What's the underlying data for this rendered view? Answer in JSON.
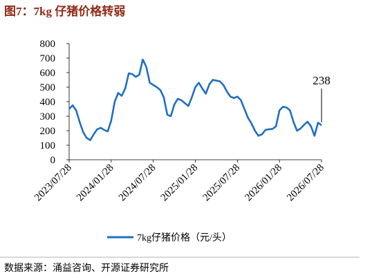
{
  "chart_data": {
    "type": "line",
    "title": "图7：7kg 仔猪价格转弱",
    "source": "数据来源：涌益咨询、开源证券研究所",
    "categories": [
      "2023/07/28",
      null,
      null,
      null,
      null,
      null,
      null,
      null,
      null,
      null,
      null,
      null,
      "2024/01/28",
      null,
      null,
      null,
      null,
      null,
      null,
      null,
      null,
      null,
      null,
      null,
      "2024/07/28",
      null,
      null,
      null,
      null,
      null,
      null,
      null,
      null,
      null,
      null,
      null,
      "2025/01/28",
      null,
      null,
      null,
      null,
      null,
      null,
      null,
      null,
      null,
      null,
      null,
      "2025/07/28",
      null,
      null,
      null,
      null,
      null,
      null,
      null,
      null,
      null,
      null,
      null,
      "2026/01/28",
      null,
      null,
      null,
      null,
      null,
      null,
      null,
      null,
      null,
      null,
      null,
      "2026/07/28"
    ],
    "series": [
      {
        "name": "7kg仔猪价格（元/头）",
        "color": "#1f6fc0",
        "values": [
          350,
          375,
          340,
          260,
          190,
          150,
          135,
          175,
          210,
          220,
          205,
          195,
          270,
          400,
          460,
          440,
          490,
          595,
          590,
          570,
          585,
          690,
          640,
          530,
          515,
          500,
          480,
          430,
          310,
          300,
          380,
          420,
          410,
          390,
          370,
          430,
          500,
          530,
          490,
          455,
          520,
          550,
          545,
          540,
          515,
          470,
          435,
          425,
          435,
          410,
          350,
          290,
          250,
          200,
          165,
          175,
          205,
          210,
          212,
          230,
          340,
          365,
          360,
          340,
          260,
          200,
          215,
          240,
          262,
          230,
          165,
          255,
          238
        ]
      }
    ],
    "ylim": [
      0,
      800
    ],
    "yticks": [
      0,
      100,
      200,
      300,
      400,
      500,
      600,
      700,
      800
    ]
  }
}
